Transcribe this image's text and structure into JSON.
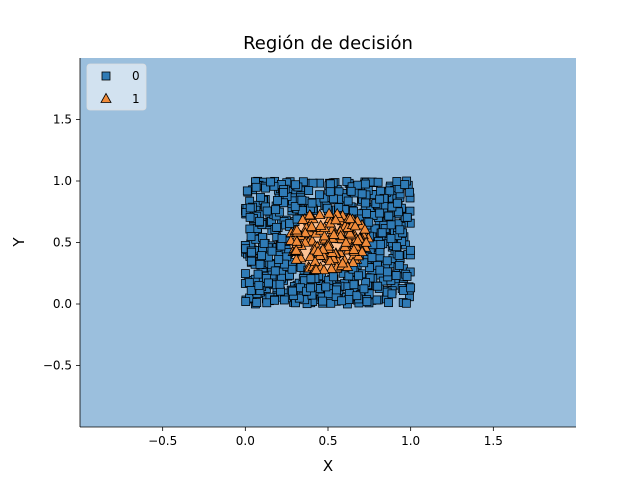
{
  "chart_data": {
    "type": "scatter",
    "title": "Región de decisión",
    "xlabel": "X",
    "ylabel": "Y",
    "xlim": [
      -1.0,
      2.0
    ],
    "ylim": [
      -1.0,
      2.0
    ],
    "x_ticks": [
      -0.5,
      0.0,
      0.5,
      1.0,
      1.5
    ],
    "y_ticks": [
      -0.5,
      0.0,
      0.5,
      1.0,
      1.5
    ],
    "x_tick_labels": [
      "−0.5",
      "0.0",
      "0.5",
      "1.0",
      "1.5"
    ],
    "y_tick_labels": [
      "−0.5",
      "0.0",
      "0.5",
      "1.0",
      "1.5"
    ],
    "grid": false,
    "legend_position": "top-left",
    "regions": [
      {
        "class": "0",
        "color": "#9bbfdd",
        "shape": "background"
      },
      {
        "class": "1",
        "color": "#fdc396",
        "shape": "circle",
        "center": [
          0.5,
          0.5
        ],
        "radius": 0.25
      }
    ],
    "domain": {
      "x": [
        0.0,
        1.0
      ],
      "y": [
        0.0,
        1.0
      ]
    },
    "series": [
      {
        "name": "0",
        "marker": "square",
        "color": "#2f7bb6",
        "rule": "outside circle center [0.5, 0.5] radius 0.25"
      },
      {
        "name": "1",
        "marker": "triangle",
        "color": "#f08b3a",
        "rule": "inside circle center [0.5, 0.5] radius 0.25"
      }
    ],
    "legend": [
      {
        "label": "0",
        "marker": "square",
        "color": "#2f7bb6"
      },
      {
        "label": "1",
        "marker": "triangle",
        "color": "#f08b3a"
      }
    ]
  }
}
